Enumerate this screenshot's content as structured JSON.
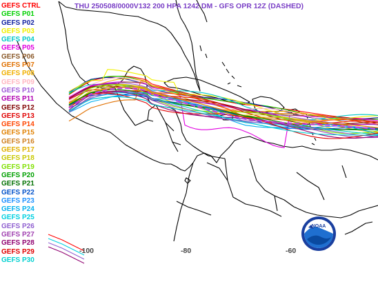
{
  "title": "THU 250508/0000V132  200 HPA 1242 DM - GFS OPR 12Z (DASHED)",
  "logo_text": "NOAA",
  "legend": [
    {
      "label": "GEFS CTRL",
      "color": "#ff0000"
    },
    {
      "label": "GEFS P01",
      "color": "#00d000"
    },
    {
      "label": "GEFS P02",
      "color": "#1020a0"
    },
    {
      "label": "GEFS P03",
      "color": "#f0f000"
    },
    {
      "label": "GEFS P04",
      "color": "#00c8c8"
    },
    {
      "label": "GEFS P05",
      "color": "#e000e0"
    },
    {
      "label": "GEFS P06",
      "color": "#8b5a2b"
    },
    {
      "label": "GEFS P07",
      "color": "#e07000"
    },
    {
      "label": "GEFS P08",
      "color": "#f0b000"
    },
    {
      "label": "GEFS P09",
      "color": "#ffb6c1"
    },
    {
      "label": "GEFS P10",
      "color": "#a05ad8"
    },
    {
      "label": "GEFS P11",
      "color": "#b000b0"
    },
    {
      "label": "GEFS P12",
      "color": "#800000"
    },
    {
      "label": "GEFS P13",
      "color": "#e00000"
    },
    {
      "label": "GEFS P14",
      "color": "#ff4500"
    },
    {
      "label": "GEFS P15",
      "color": "#e08000"
    },
    {
      "label": "GEFS P16",
      "color": "#d08020"
    },
    {
      "label": "GEFS P17",
      "color": "#e0b000"
    },
    {
      "label": "GEFS P18",
      "color": "#c8c800"
    },
    {
      "label": "GEFS P19",
      "color": "#80e000"
    },
    {
      "label": "GEFS P20",
      "color": "#00a000"
    },
    {
      "label": "GEFS P21",
      "color": "#007000"
    },
    {
      "label": "GEFS P22",
      "color": "#0050c8"
    },
    {
      "label": "GEFS P23",
      "color": "#1e90ff"
    },
    {
      "label": "GEFS P24",
      "color": "#00b0f0"
    },
    {
      "label": "GEFS P25",
      "color": "#00d0e0"
    },
    {
      "label": "GEFS P26",
      "color": "#9060d0"
    },
    {
      "label": "GEFS P27",
      "color": "#a040b0"
    },
    {
      "label": "GEFS P28",
      "color": "#900070"
    },
    {
      "label": "GEFS P29",
      "color": "#e00000"
    },
    {
      "label": "GEFS P30",
      "color": "#00d0d0"
    }
  ],
  "longitude_labels": [
    "-100",
    "-80",
    "-60"
  ],
  "colors": {
    "title": "#7a3fc6",
    "opr_dashed": "#c040e0",
    "coastline": "#000000",
    "axis_label": "#444444"
  }
}
